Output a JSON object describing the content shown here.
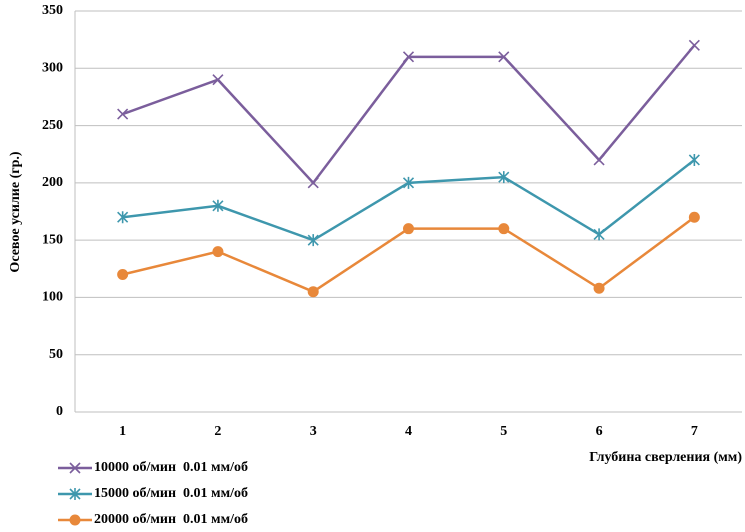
{
  "chart_data": {
    "type": "line",
    "y_label": "Осевое усилие (гр.)",
    "x_label": "Глубина сверления (мм)",
    "categories": [
      "1",
      "2",
      "3",
      "4",
      "5",
      "6",
      "7"
    ],
    "series": [
      {
        "name": "10000 об/мин  0.01 мм/об",
        "color": "#7b5e9c",
        "marker": "x",
        "values": [
          260,
          290,
          200,
          310,
          310,
          220,
          320
        ]
      },
      {
        "name": "15000 об/мин  0.01 мм/об",
        "color": "#3e97ad",
        "marker": "asterisk",
        "values": [
          170,
          180,
          150,
          200,
          205,
          155,
          220
        ]
      },
      {
        "name": "20000 об/мин  0.01 мм/об",
        "color": "#e8883a",
        "marker": "circle",
        "values": [
          120,
          140,
          105,
          160,
          160,
          108,
          170
        ]
      }
    ],
    "ylim": [
      0,
      350
    ],
    "yticks": [
      0,
      50,
      100,
      150,
      200,
      250,
      300,
      350
    ],
    "grid": true,
    "legend": "bottom-left"
  }
}
